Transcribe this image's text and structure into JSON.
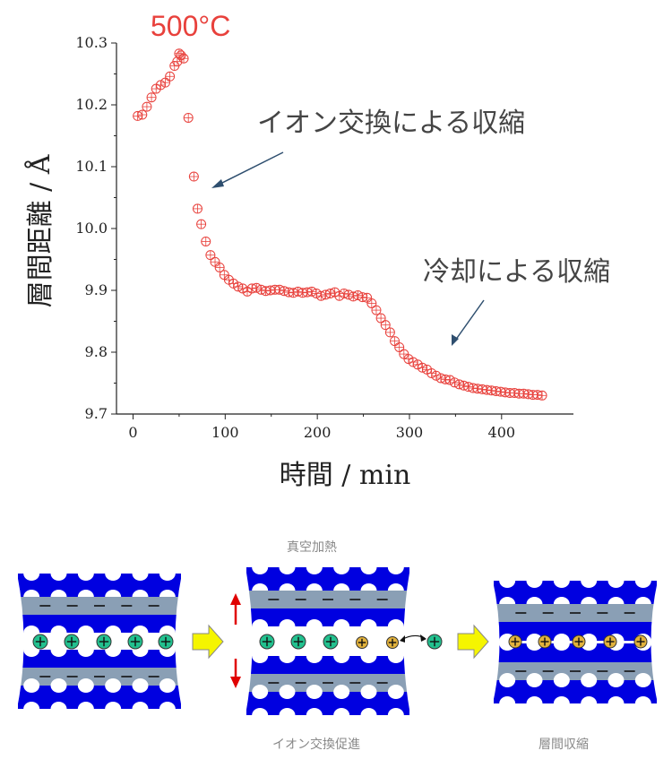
{
  "chart_data": {
    "type": "scatter",
    "title": "",
    "xlabel": "時間 / min",
    "ylabel": "層間距離 / Å",
    "xlim": [
      -18,
      478
    ],
    "ylim": [
      9.7,
      10.3
    ],
    "xticks": [
      0,
      100,
      200,
      300,
      400
    ],
    "yticks": [
      9.7,
      9.8,
      9.9,
      10.0,
      10.1,
      10.2,
      10.3
    ],
    "ytick_labels": [
      "9.7",
      "9.8",
      "9.9",
      "10.0",
      "10.1",
      "10.2",
      "10.3"
    ],
    "grid": false,
    "marker": "open-circle-with-errorbar",
    "marker_color": "#e8413c",
    "series": [
      {
        "x": [
          5,
          10,
          15,
          20,
          25,
          30,
          35,
          40,
          45,
          48,
          50,
          52,
          55,
          60,
          66,
          70,
          74,
          79,
          84,
          89,
          94,
          99,
          104,
          109,
          114,
          119,
          124,
          129,
          134,
          139,
          144,
          149,
          154,
          159,
          164,
          169,
          174,
          179,
          184,
          189,
          194,
          199,
          204,
          209,
          214,
          219,
          224,
          229,
          234,
          239,
          244,
          249,
          254,
          259,
          264,
          269,
          274,
          279,
          284,
          289,
          294,
          299,
          304,
          309,
          314,
          319,
          324,
          329,
          334,
          339,
          344,
          349,
          354,
          359,
          364,
          369,
          374,
          379,
          384,
          389,
          394,
          399,
          404,
          409,
          414,
          419,
          424,
          429,
          434,
          439,
          444
        ],
        "y": [
          10.182,
          10.184,
          10.197,
          10.212,
          10.226,
          10.232,
          10.236,
          10.246,
          10.263,
          10.27,
          10.283,
          10.28,
          10.275,
          10.179,
          10.084,
          10.032,
          10.007,
          9.979,
          9.957,
          9.946,
          9.937,
          9.925,
          9.917,
          9.911,
          9.906,
          9.903,
          9.898,
          9.903,
          9.904,
          9.901,
          9.899,
          9.9,
          9.901,
          9.901,
          9.899,
          9.897,
          9.896,
          9.898,
          9.896,
          9.897,
          9.898,
          9.895,
          9.891,
          9.893,
          9.895,
          9.897,
          9.891,
          9.895,
          9.893,
          9.89,
          9.892,
          9.889,
          9.888,
          9.879,
          9.868,
          9.855,
          9.844,
          9.832,
          9.818,
          9.808,
          9.797,
          9.789,
          9.784,
          9.78,
          9.775,
          9.772,
          9.766,
          9.762,
          9.758,
          9.756,
          9.755,
          9.751,
          9.748,
          9.746,
          9.744,
          9.742,
          9.741,
          9.74,
          9.739,
          9.738,
          9.737,
          9.736,
          9.735,
          9.734,
          9.734,
          9.733,
          9.733,
          9.732,
          9.731,
          9.731,
          9.73
        ]
      }
    ],
    "annotations": [
      {
        "text": "500°C",
        "color": "#e8413c"
      },
      {
        "text": "イオン交換による収縮",
        "color": "#444444"
      },
      {
        "text": "冷却による収縮",
        "color": "#444444"
      }
    ]
  },
  "diagram": {
    "top_label": "真空加熱",
    "bottom_labels": [
      "イオン交換促進",
      "層間収縮"
    ],
    "colors": {
      "layer": "#0000e0",
      "sheet": "#8a9fb5",
      "cation_green": "#22c08e",
      "cation_gold": "#e2b23c",
      "arrow_yellow": "#f5f500",
      "arrow_red": "#e00000"
    }
  }
}
